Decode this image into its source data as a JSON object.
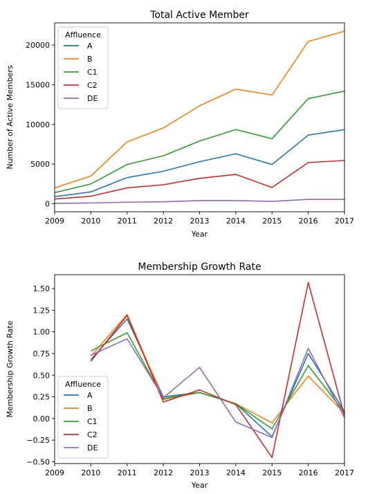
{
  "chart_data": [
    {
      "type": "line",
      "title": "Total Active Member",
      "xlabel": "Year",
      "ylabel": "Number of Active Members",
      "xlim": [
        2009,
        2017
      ],
      "ylim": [
        -1000,
        22800
      ],
      "xticks": [
        "2009",
        "2010",
        "2011",
        "2012",
        "2013",
        "2014",
        "2015",
        "2016",
        "2017"
      ],
      "yticks": [
        "0",
        "5000",
        "10000",
        "15000",
        "20000"
      ],
      "legend": {
        "title": "Affluence",
        "placement": "top-left"
      },
      "grid": false,
      "x": [
        2009,
        2010,
        2011,
        2012,
        2013,
        2014,
        2015,
        2016,
        2017
      ],
      "series": [
        {
          "name": "A",
          "color": "#1f77b4",
          "values": [
            900,
            1500,
            3300,
            4100,
            5300,
            6300,
            4950,
            8650,
            9350
          ]
        },
        {
          "name": "B",
          "color": "#ff7f0e",
          "values": [
            2000,
            3500,
            7800,
            9550,
            12350,
            14450,
            13700,
            20450,
            21750
          ]
        },
        {
          "name": "C1",
          "color": "#2ca02c",
          "values": [
            1400,
            2500,
            4950,
            6050,
            7900,
            9350,
            8200,
            13250,
            14200
          ]
        },
        {
          "name": "C2",
          "color": "#d62728",
          "values": [
            600,
            950,
            2000,
            2400,
            3200,
            3700,
            2050,
            5200,
            5450
          ]
        },
        {
          "name": "DE",
          "color": "#9467bd",
          "values": [
            50,
            100,
            200,
            250,
            400,
            400,
            300,
            550,
            550
          ]
        }
      ]
    },
    {
      "type": "line",
      "title": "Membership Growth Rate",
      "xlabel": "Year",
      "ylabel": "Membership Growth Rate",
      "xlim": [
        2009,
        2017
      ],
      "ylim": [
        -0.52,
        1.66
      ],
      "xticks": [
        "2009",
        "2010",
        "2011",
        "2012",
        "2013",
        "2014",
        "2015",
        "2016",
        "2017"
      ],
      "yticks": [
        "−0.50",
        "−0.25",
        "0.00",
        "0.25",
        "0.50",
        "0.75",
        "1.00",
        "1.25",
        "1.50"
      ],
      "legend": {
        "title": "Affluence",
        "placement": "lower-left"
      },
      "grid": false,
      "x": [
        2010,
        2011,
        2012,
        2013,
        2014,
        2015,
        2016,
        2017
      ],
      "series": [
        {
          "name": "A",
          "color": "#1f77b4",
          "values": [
            0.68,
            1.15,
            0.25,
            0.3,
            0.17,
            -0.21,
            0.75,
            0.08
          ]
        },
        {
          "name": "B",
          "color": "#ff7f0e",
          "values": [
            0.72,
            1.2,
            0.22,
            0.3,
            0.17,
            -0.05,
            0.49,
            0.06
          ]
        },
        {
          "name": "C1",
          "color": "#2ca02c",
          "values": [
            0.78,
            0.99,
            0.23,
            0.3,
            0.17,
            -0.12,
            0.61,
            0.07
          ]
        },
        {
          "name": "C2",
          "color": "#d62728",
          "values": [
            0.66,
            1.19,
            0.19,
            0.33,
            0.16,
            -0.45,
            1.57,
            0.03
          ]
        },
        {
          "name": "DE",
          "color": "#9467bd",
          "values": [
            0.73,
            0.92,
            0.24,
            0.59,
            -0.04,
            -0.22,
            0.81,
            0.01
          ]
        }
      ]
    }
  ]
}
